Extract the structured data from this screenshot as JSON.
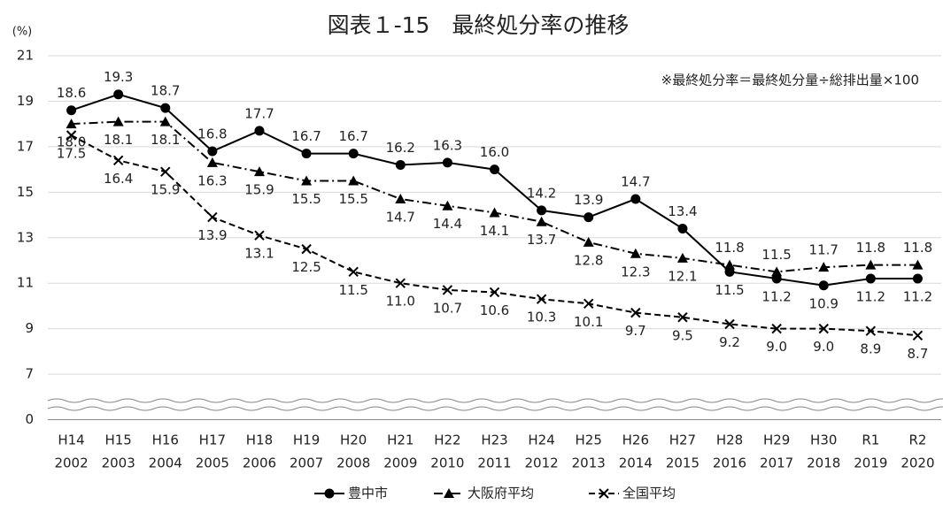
{
  "chart_data": {
    "type": "line",
    "title": "図表１-15　最終処分率の推移",
    "y_unit_label": "(%)",
    "annotation": "※最終処分率＝最終処分量÷総排出量×100",
    "categories": [
      "H14",
      "H15",
      "H16",
      "H17",
      "H18",
      "H19",
      "H20",
      "H21",
      "H22",
      "H23",
      "H24",
      "H25",
      "H26",
      "H27",
      "H28",
      "H29",
      "H30",
      "R1",
      "R2"
    ],
    "category_years": [
      "2002",
      "2003",
      "2004",
      "2005",
      "2006",
      "2007",
      "2008",
      "2009",
      "2010",
      "2011",
      "2012",
      "2013",
      "2014",
      "2015",
      "2016",
      "2017",
      "2018",
      "2019",
      "2020"
    ],
    "ylim": [
      0,
      21
    ],
    "axis_break": [
      0,
      5
    ],
    "yticks": [
      0,
      7,
      9,
      11,
      13,
      15,
      17,
      19,
      21
    ],
    "grid": true,
    "series": [
      {
        "name": "豊中市",
        "color": "#000000",
        "line_style": "solid",
        "marker": "circle",
        "values": [
          18.6,
          19.3,
          18.7,
          16.8,
          17.7,
          16.7,
          16.7,
          16.2,
          16.3,
          16.0,
          14.2,
          13.9,
          14.7,
          13.4,
          11.5,
          11.2,
          10.9,
          11.2,
          11.2
        ],
        "value_labels": [
          "18.6",
          "19.3",
          "18.7",
          "16.8",
          "17.7",
          "16.7",
          "16.7",
          "16.2",
          "16.3",
          "16.0",
          "14.2",
          "13.9",
          "14.7",
          "13.4",
          "11.5",
          "11.2",
          "10.9",
          "11.2",
          "11.2"
        ]
      },
      {
        "name": "大阪府平均",
        "color": "#000000",
        "line_style": "dashdot",
        "marker": "triangle",
        "values": [
          18.0,
          18.1,
          18.1,
          16.3,
          15.9,
          15.5,
          15.5,
          14.7,
          14.4,
          14.1,
          13.7,
          12.8,
          12.3,
          12.1,
          11.8,
          11.5,
          11.7,
          11.8,
          11.8
        ],
        "value_labels": [
          "18.0",
          "18.1",
          "18.1",
          "16.3",
          "15.9",
          "15.5",
          "15.5",
          "14.7",
          "14.4",
          "14.1",
          "13.7",
          "12.8",
          "12.3",
          "12.1",
          "11.8",
          "11.5",
          "11.7",
          "11.8",
          "11.8"
        ]
      },
      {
        "name": "全国平均",
        "color": "#000000",
        "line_style": "dashed",
        "marker": "x",
        "values": [
          17.5,
          16.4,
          15.9,
          13.9,
          13.1,
          12.5,
          11.5,
          11.0,
          10.7,
          10.6,
          10.3,
          10.1,
          9.7,
          9.5,
          9.2,
          9.0,
          9.0,
          8.9,
          8.7
        ],
        "value_labels": [
          "17.5",
          "16.4",
          "15.9",
          "13.9",
          "13.1",
          "12.5",
          "11.5",
          "11.0",
          "10.7",
          "10.6",
          "10.3",
          "10.1",
          "9.7",
          "9.5",
          "9.2",
          "9.0",
          "9.0",
          "8.9",
          "8.7"
        ]
      }
    ]
  }
}
